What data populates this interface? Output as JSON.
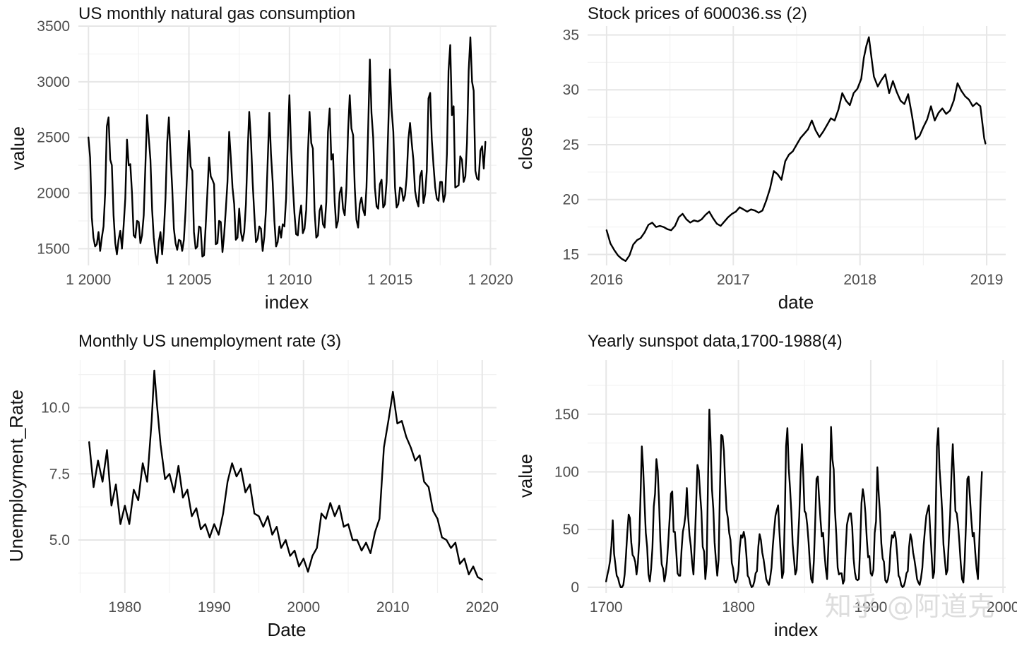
{
  "watermark": "知乎 @阿道克",
  "chart_data": [
    {
      "type": "line",
      "title": "US monthly natural gas consumption",
      "xlabel": "index",
      "ylabel": "value",
      "xlim": [
        1999.5,
        2020.3
      ],
      "ylim": [
        1350,
        3500
      ],
      "x_ticks": [
        {
          "value": 2000,
          "label": "1 2000"
        },
        {
          "value": 2005,
          "label": "1 2005"
        },
        {
          "value": 2010,
          "label": "1 2010"
        },
        {
          "value": 2015,
          "label": "1 2015"
        },
        {
          "value": 2020,
          "label": "1 2020"
        }
      ],
      "y_ticks": [
        {
          "value": 1500,
          "label": "1500"
        },
        {
          "value": 2000,
          "label": "2000"
        },
        {
          "value": 2500,
          "label": "2500"
        },
        {
          "value": 3000,
          "label": "3000"
        },
        {
          "value": 3500,
          "label": "3500"
        }
      ],
      "x_start": 2000,
      "x_step": 0.08333,
      "values": [
        2500,
        2320,
        1780,
        1600,
        1520,
        1540,
        1650,
        1480,
        1600,
        1700,
        2000,
        2600,
        2680,
        2300,
        2250,
        1800,
        1550,
        1450,
        1580,
        1660,
        1500,
        1700,
        1950,
        2480,
        2250,
        2260,
        2000,
        1620,
        1600,
        1750,
        1740,
        1550,
        1620,
        1800,
        2250,
        2700,
        2500,
        2300,
        1850,
        1600,
        1450,
        1370,
        1560,
        1650,
        1450,
        1650,
        1950,
        2450,
        2680,
        2350,
        2050,
        1680,
        1550,
        1490,
        1580,
        1570,
        1480,
        1580,
        1850,
        2220,
        2560,
        2240,
        2200,
        1650,
        1500,
        1520,
        1700,
        1690,
        1430,
        1440,
        1700,
        2000,
        2320,
        2150,
        2120,
        2080,
        1540,
        1550,
        1750,
        1740,
        1470,
        1620,
        1850,
        2100,
        2550,
        2320,
        2050,
        1900,
        1580,
        1600,
        1860,
        1650,
        1570,
        1650,
        1900,
        2350,
        2730,
        2480,
        2100,
        1820,
        1560,
        1590,
        1700,
        1680,
        1480,
        1610,
        1850,
        2280,
        2720,
        2350,
        2100,
        1750,
        1520,
        1560,
        1700,
        1600,
        1720,
        1700,
        1950,
        2470,
        2880,
        2400,
        2070,
        1820,
        1630,
        1620,
        1800,
        1890,
        1640,
        1680,
        1850,
        2350,
        2730,
        2450,
        2400,
        1840,
        1600,
        1620,
        1840,
        1890,
        1720,
        1690,
        1920,
        2550,
        2760,
        2300,
        2350,
        1920,
        1690,
        1750,
        2000,
        2050,
        1860,
        1800,
        2050,
        2550,
        2880,
        2580,
        2520,
        2050,
        1760,
        1690,
        1900,
        1960,
        1850,
        1800,
        2050,
        2580,
        3200,
        2720,
        2500,
        2050,
        1880,
        1860,
        2080,
        2120,
        1870,
        1900,
        2100,
        2600,
        3110,
        2750,
        2550,
        2050,
        1870,
        1900,
        2050,
        2040,
        1930,
        1980,
        2150,
        2480,
        2630,
        2450,
        2300,
        2020,
        1930,
        1880,
        2150,
        2200,
        1910,
        1990,
        2200,
        2850,
        2900,
        2480,
        2250,
        2050,
        1950,
        1930,
        2100,
        2100,
        1920,
        1990,
        2350,
        3100,
        3330,
        2700,
        2780,
        2050,
        2060,
        2070,
        2330,
        2300,
        2100,
        2150,
        2450,
        3100,
        3400,
        3000,
        2920,
        2200,
        2130,
        2120,
        2380,
        2420,
        2220,
        2460
      ]
    },
    {
      "type": "line",
      "title": "Stock prices of 600036.ss (2)",
      "xlabel": "date",
      "ylabel": "close",
      "xlim": [
        2015.85,
        2019.15
      ],
      "ylim": [
        14.0,
        35.8
      ],
      "x_ticks": [
        {
          "value": 2016,
          "label": "2016"
        },
        {
          "value": 2017,
          "label": "2017"
        },
        {
          "value": 2018,
          "label": "2018"
        },
        {
          "value": 2019,
          "label": "2019"
        }
      ],
      "y_ticks": [
        {
          "value": 15,
          "label": "15"
        },
        {
          "value": 20,
          "label": "20"
        },
        {
          "value": 25,
          "label": "25"
        },
        {
          "value": 30,
          "label": "30"
        },
        {
          "value": 35,
          "label": "35"
        }
      ],
      "x": [
        2016.0,
        2016.03,
        2016.06,
        2016.09,
        2016.12,
        2016.15,
        2016.18,
        2016.21,
        2016.24,
        2016.27,
        2016.3,
        2016.33,
        2016.36,
        2016.39,
        2016.42,
        2016.45,
        2016.48,
        2016.51,
        2016.54,
        2016.57,
        2016.6,
        2016.63,
        2016.66,
        2016.69,
        2016.72,
        2016.75,
        2016.78,
        2016.81,
        2016.84,
        2016.87,
        2016.9,
        2016.93,
        2016.96,
        2016.99,
        2017.02,
        2017.05,
        2017.08,
        2017.11,
        2017.14,
        2017.17,
        2017.2,
        2017.23,
        2017.26,
        2017.29,
        2017.32,
        2017.35,
        2017.38,
        2017.41,
        2017.44,
        2017.47,
        2017.5,
        2017.53,
        2017.56,
        2017.59,
        2017.62,
        2017.65,
        2017.68,
        2017.71,
        2017.74,
        2017.77,
        2017.8,
        2017.83,
        2017.86,
        2017.89,
        2017.92,
        2017.95,
        2017.98,
        2018.01,
        2018.03,
        2018.05,
        2018.07,
        2018.09,
        2018.11,
        2018.14,
        2018.17,
        2018.2,
        2018.23,
        2018.26,
        2018.29,
        2018.32,
        2018.35,
        2018.38,
        2018.41,
        2018.44,
        2018.47,
        2018.5,
        2018.53,
        2018.56,
        2018.59,
        2018.62,
        2018.65,
        2018.68,
        2018.71,
        2018.74,
        2018.77,
        2018.8,
        2018.83,
        2018.86,
        2018.89,
        2018.92,
        2018.95,
        2018.98,
        2018.99
      ],
      "values": [
        17.2,
        16.0,
        15.4,
        14.9,
        14.6,
        14.4,
        14.9,
        15.9,
        16.3,
        16.5,
        17.0,
        17.7,
        17.9,
        17.5,
        17.6,
        17.5,
        17.3,
        17.2,
        17.6,
        18.4,
        18.7,
        18.2,
        17.9,
        18.1,
        18.0,
        18.2,
        18.6,
        18.9,
        18.3,
        17.8,
        17.6,
        18.0,
        18.4,
        18.7,
        18.9,
        19.3,
        19.1,
        18.9,
        19.1,
        19.0,
        18.8,
        19.0,
        19.9,
        21.0,
        22.6,
        22.3,
        21.8,
        23.5,
        24.1,
        24.4,
        25.0,
        25.6,
        26.0,
        26.4,
        27.2,
        26.3,
        25.7,
        26.2,
        26.8,
        27.4,
        27.2,
        28.2,
        29.7,
        29.0,
        28.6,
        29.7,
        30.1,
        31.0,
        32.9,
        34.0,
        34.8,
        33.0,
        31.2,
        30.3,
        30.9,
        31.4,
        29.7,
        30.8,
        29.8,
        29.0,
        28.7,
        29.6,
        27.7,
        25.5,
        25.8,
        26.6,
        27.3,
        28.5,
        27.2,
        27.9,
        28.3,
        27.8,
        28.1,
        29.0,
        30.6,
        29.9,
        29.4,
        29.1,
        28.5,
        28.8,
        28.5,
        25.6,
        25.1
      ]
    },
    {
      "type": "line",
      "title": "Monthly US unemployment rate (3)",
      "xlabel": "Date",
      "ylabel": "Unemployment_Rate",
      "xlim": [
        1974.8,
        2021.6
      ],
      "ylim": [
        3.0,
        11.8
      ],
      "x_ticks": [
        {
          "value": 1980,
          "label": "1980"
        },
        {
          "value": 1990,
          "label": "1990"
        },
        {
          "value": 2000,
          "label": "2000"
        },
        {
          "value": 2010,
          "label": "2010"
        },
        {
          "value": 2020,
          "label": "2020"
        }
      ],
      "y_ticks": [
        {
          "value": 5.0,
          "label": "5.0"
        },
        {
          "value": 7.5,
          "label": "7.5"
        },
        {
          "value": 10.0,
          "label": "10.0"
        }
      ],
      "x": [
        1976.0,
        1976.5,
        1977.0,
        1977.5,
        1978.0,
        1978.5,
        1979.0,
        1979.5,
        1980.0,
        1980.5,
        1981.0,
        1981.5,
        1982.0,
        1982.5,
        1983.0,
        1983.3,
        1983.6,
        1984.0,
        1984.5,
        1985.0,
        1985.5,
        1986.0,
        1986.5,
        1987.0,
        1987.5,
        1988.0,
        1988.5,
        1989.0,
        1989.5,
        1990.0,
        1990.5,
        1991.0,
        1991.5,
        1992.0,
        1992.5,
        1993.0,
        1993.5,
        1994.0,
        1994.5,
        1995.0,
        1995.5,
        1996.0,
        1996.5,
        1997.0,
        1997.5,
        1998.0,
        1998.5,
        1999.0,
        1999.5,
        2000.0,
        2000.5,
        2001.0,
        2001.5,
        2002.0,
        2002.5,
        2003.0,
        2003.5,
        2004.0,
        2004.5,
        2005.0,
        2005.5,
        2006.0,
        2006.5,
        2007.0,
        2007.5,
        2008.0,
        2008.5,
        2009.0,
        2009.5,
        2010.0,
        2010.5,
        2011.0,
        2011.5,
        2012.0,
        2012.5,
        2013.0,
        2013.5,
        2014.0,
        2014.5,
        2015.0,
        2015.5,
        2016.0,
        2016.5,
        2017.0,
        2017.5,
        2018.0,
        2018.5,
        2019.0,
        2019.5,
        2020.0
      ],
      "values": [
        8.7,
        7.0,
        8.0,
        7.2,
        8.4,
        6.3,
        7.1,
        5.6,
        6.3,
        5.6,
        6.9,
        6.5,
        7.9,
        7.2,
        9.5,
        11.4,
        10.1,
        8.6,
        7.3,
        7.5,
        6.8,
        7.8,
        6.6,
        6.9,
        5.9,
        6.2,
        5.4,
        5.6,
        5.1,
        5.6,
        5.2,
        6.0,
        7.2,
        7.9,
        7.4,
        7.7,
        6.8,
        7.1,
        6.0,
        5.9,
        5.5,
        5.9,
        5.2,
        5.5,
        4.7,
        5.0,
        4.4,
        4.6,
        4.0,
        4.3,
        3.8,
        4.4,
        4.7,
        6.0,
        5.8,
        6.4,
        5.9,
        6.3,
        5.5,
        5.6,
        5.0,
        5.0,
        4.6,
        4.9,
        4.5,
        5.3,
        5.8,
        8.5,
        9.5,
        10.6,
        9.4,
        9.5,
        8.9,
        8.5,
        8.0,
        8.2,
        7.2,
        7.0,
        6.1,
        5.8,
        5.1,
        5.0,
        4.7,
        4.9,
        4.1,
        4.3,
        3.7,
        4.0,
        3.6,
        3.5
      ]
    },
    {
      "type": "line",
      "title": "Yearly sunspot data,1700-1988(4)",
      "xlabel": "index",
      "ylabel": "value",
      "xlim": [
        1686,
        2002
      ],
      "ylim": [
        -5,
        197
      ],
      "x_ticks": [
        {
          "value": 1700,
          "label": "1700"
        },
        {
          "value": 1800,
          "label": "1800"
        },
        {
          "value": 1900,
          "label": "1900"
        },
        {
          "value": 2000,
          "label": "2000"
        }
      ],
      "y_ticks": [
        {
          "value": 0,
          "label": "0"
        },
        {
          "value": 50,
          "label": "50"
        },
        {
          "value": 100,
          "label": "100"
        },
        {
          "value": 150,
          "label": "150"
        }
      ],
      "x_start": 1700,
      "x_step": 1,
      "values": [
        5,
        11,
        16,
        23,
        36,
        58,
        29,
        20,
        10,
        8,
        3,
        0,
        0,
        2,
        11,
        27,
        47,
        63,
        60,
        39,
        28,
        26,
        22,
        11,
        21,
        40,
        78,
        122,
        103,
        73,
        47,
        35,
        11,
        5,
        16,
        34,
        70,
        81,
        111,
        101,
        73,
        40,
        20,
        16,
        5,
        11,
        22,
        40,
        60,
        81,
        83,
        48,
        48,
        31,
        12,
        10,
        10,
        32,
        48,
        54,
        63,
        86,
        61,
        45,
        36,
        21,
        11,
        38,
        70,
        106,
        101,
        82,
        66,
        35,
        31,
        7,
        20,
        93,
        154,
        126,
        85,
        68,
        39,
        23,
        10,
        24,
        83,
        132,
        131,
        118,
        90,
        67,
        60,
        47,
        41,
        21,
        16,
        6,
        4,
        7,
        14,
        34,
        45,
        43,
        48,
        42,
        28,
        10,
        8,
        3,
        0,
        1,
        5,
        12,
        14,
        35,
        46,
        41,
        30,
        24,
        16,
        7,
        4,
        2,
        8,
        17,
        36,
        50,
        62,
        67,
        71,
        48,
        28,
        8,
        13,
        57,
        122,
        138,
        103,
        86,
        65,
        37,
        24,
        11,
        15,
        40,
        62,
        98,
        124,
        96,
        66,
        64,
        54,
        39,
        21,
        7,
        4,
        23,
        55,
        94,
        96,
        77,
        59,
        44,
        47,
        30,
        16,
        7,
        37,
        74,
        139,
        111,
        102,
        66,
        45,
        17,
        11,
        12,
        12,
        3,
        6,
        32,
        54,
        60,
        64,
        64,
        52,
        25,
        13,
        7,
        6,
        7,
        36,
        73,
        85,
        78,
        64,
        42,
        26,
        27,
        12,
        10,
        15,
        47,
        57,
        104,
        81,
        64,
        38,
        25,
        22,
        6,
        4,
        7,
        14,
        34,
        45,
        43,
        48,
        42,
        28,
        10,
        8,
        2,
        0,
        1,
        5,
        12,
        14,
        35,
        46,
        41,
        30,
        24,
        16,
        7,
        4,
        2,
        8,
        17,
        36,
        50,
        62,
        67,
        71,
        48,
        28,
        8,
        13,
        57,
        122,
        138,
        103,
        86,
        65,
        37,
        24,
        11,
        15,
        40,
        62,
        98,
        124,
        96,
        66,
        64,
        54,
        39,
        21,
        7,
        4,
        23,
        55,
        94,
        96,
        77,
        59,
        44,
        47,
        30,
        16,
        7,
        37,
        74,
        100
      ]
    }
  ]
}
